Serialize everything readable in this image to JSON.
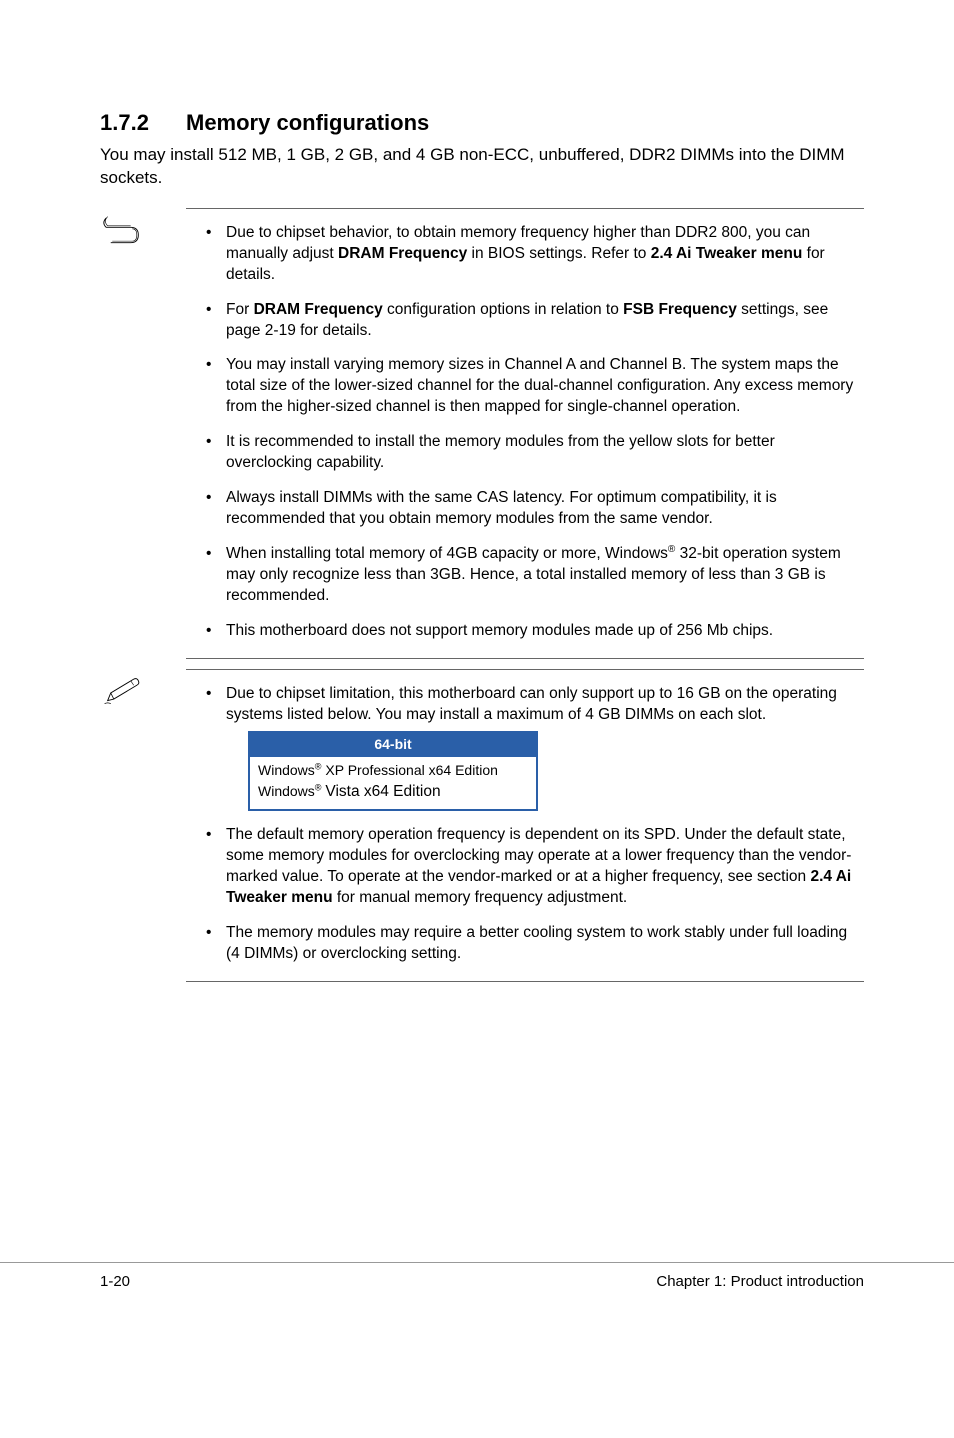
{
  "heading": {
    "number": "1.7.2",
    "title": "Memory configurations"
  },
  "intro": "You may install 512 MB, 1 GB, 2 GB, and 4 GB non-ECC, unbuffered, DDR2 DIMMs into the DIMM sockets.",
  "block1": {
    "items": [
      {
        "html": "Due to chipset behavior, to obtain memory frequency higher than DDR2 800, you can manually adjust <span class='bold'>DRAM Frequency</span> in BIOS settings. Refer to <span class='bold'>2.4 Ai Tweaker menu</span> for details."
      },
      {
        "html": "For <span class='bold'>DRAM Frequency</span> configuration options in relation to <span class='bold'>FSB Frequency</span> settings, see page 2-19 for details."
      },
      {
        "html": "You may install varying memory sizes in Channel A and Channel B. The system maps the total size of the lower-sized channel for the dual-channel configuration. Any excess memory from the higher-sized channel is then mapped for single-channel operation."
      },
      {
        "html": "It is recommended to install the memory modules from the yellow slots for better overclocking capability."
      },
      {
        "html": "Always install DIMMs with the same CAS latency. For optimum compatibility, it is recommended that you obtain memory modules from the same vendor."
      },
      {
        "html": "When installing total memory of 4GB capacity or more, Windows<sup>®</sup> 32-bit operation system may only recognize less than 3GB. Hence, a total installed memory of less than 3 GB is recommended."
      },
      {
        "html": "This motherboard does not support memory modules made up of 256 Mb chips."
      }
    ]
  },
  "block2": {
    "items": [
      {
        "html": "Due to chipset limitation, this motherboard can only support up to 16 GB on the operating systems listed below. You may install a maximum of 4 GB DIMMs on each slot.",
        "table": true
      },
      {
        "html": "The default memory operation frequency is dependent on its SPD. Under the default state, some memory modules for overclocking may operate at a lower frequency than the vendor-marked value. To operate at the vendor-marked or at a higher frequency, see section <span class='bold'>2.4 Ai Tweaker menu</span> for manual memory frequency adjustment."
      },
      {
        "html": "The memory modules may require a better cooling system to work stably under full loading (4 DIMMs) or overclocking setting."
      }
    ]
  },
  "os_table": {
    "header": "64-bit",
    "rows_html": "Windows<sup>®</sup> XP Professional x64 Edition<br>Windows<sup>®</sup> <span class='bigger'>Vista x64 Edition</span>"
  },
  "footer": {
    "left": "1-20",
    "right": "Chapter 1: Product introduction"
  },
  "colors": {
    "table_border": "#2a5fa8",
    "table_header_bg": "#2a5fa8",
    "rule": "#666666"
  }
}
